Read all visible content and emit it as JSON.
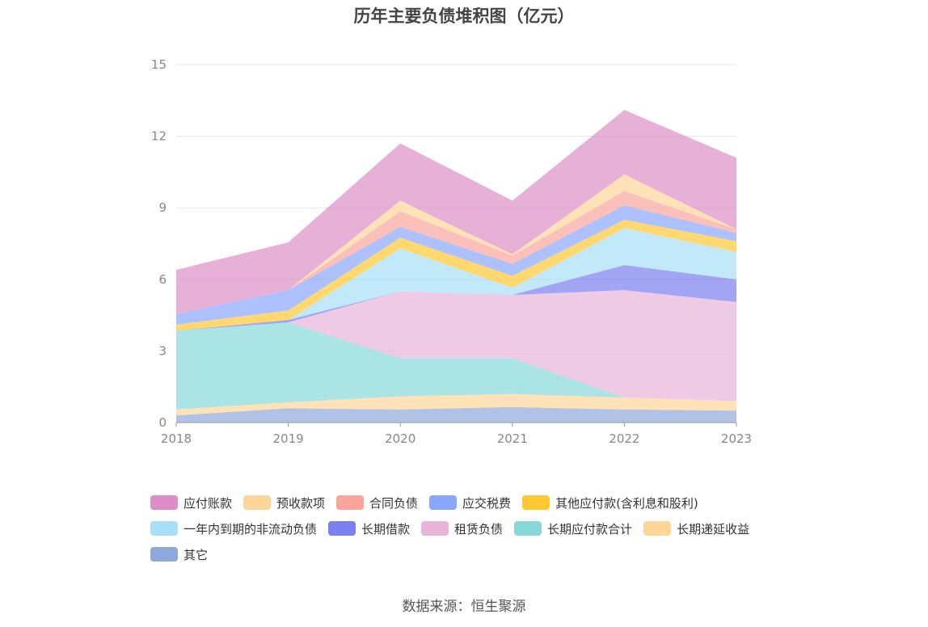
{
  "chart_data": {
    "type": "area",
    "title": "历年主要负债堆积图（亿元）",
    "source": "数据来源：恒生聚源",
    "x": [
      "2018",
      "2019",
      "2020",
      "2021",
      "2022",
      "2023"
    ],
    "ylim": [
      0,
      15
    ],
    "yticks": [
      0,
      3,
      6,
      9,
      12,
      15
    ],
    "grid": true,
    "legend_position": "bottom",
    "stacked": true,
    "series": [
      {
        "name": "其它",
        "color": "#8fa9db",
        "values": [
          0.3,
          0.6,
          0.55,
          0.65,
          0.55,
          0.5
        ]
      },
      {
        "name": "长期递延收益",
        "color": "#ffd699",
        "values": [
          0.25,
          0.25,
          0.55,
          0.55,
          0.5,
          0.4
        ]
      },
      {
        "name": "长期应付款合计",
        "color": "#88d8d8",
        "values": [
          3.3,
          3.35,
          1.6,
          1.5,
          0.0,
          0.0
        ]
      },
      {
        "name": "租赁负债",
        "color": "#e8b4d8",
        "values": [
          0.0,
          0.0,
          2.8,
          2.65,
          4.5,
          4.15
        ]
      },
      {
        "name": "长期借款",
        "color": "#7b7ff0",
        "values": [
          0.0,
          0.1,
          0.0,
          0.0,
          1.05,
          0.95
        ]
      },
      {
        "name": "一年内到期的非流动负债",
        "color": "#a8dff7",
        "values": [
          0.0,
          0.0,
          1.8,
          0.3,
          1.55,
          1.15
        ]
      },
      {
        "name": "其他应付款(含利息和股利)",
        "color": "#ffc933",
        "values": [
          0.25,
          0.4,
          0.45,
          0.5,
          0.35,
          0.45
        ]
      },
      {
        "name": "应交税费",
        "color": "#8aa7ff",
        "values": [
          0.45,
          0.85,
          0.45,
          0.5,
          0.6,
          0.35
        ]
      },
      {
        "name": "合同负债",
        "color": "#f9a59c",
        "values": [
          0.0,
          0.0,
          0.65,
          0.35,
          0.6,
          0.15
        ]
      },
      {
        "name": "预收款项",
        "color": "#ffd699",
        "values": [
          0.0,
          0.0,
          0.45,
          0.05,
          0.7,
          0.0
        ]
      },
      {
        "name": "应付账款",
        "color": "#dd8ec6",
        "values": [
          1.85,
          2.0,
          2.4,
          2.25,
          2.7,
          3.0
        ]
      }
    ],
    "legend_order": [
      "应付账款",
      "预收款项",
      "合同负债",
      "应交税费",
      "其他应付款(含利息和股利)",
      "一年内到期的非流动负债",
      "长期借款",
      "租赁负债",
      "长期应付款合计",
      "长期递延收益",
      "其它"
    ]
  }
}
